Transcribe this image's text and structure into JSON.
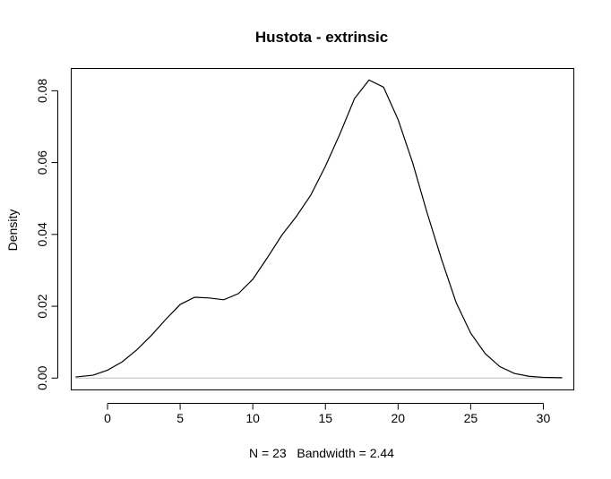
{
  "chart_data": {
    "type": "line",
    "title": "Hustota - extrinsic",
    "xlabel": "N = 23   Bandwidth = 2.44",
    "ylabel": "Density",
    "xlim": [
      -2.5,
      32.1
    ],
    "ylim": [
      -0.0033,
      0.0862
    ],
    "x_ticks": [
      0,
      5,
      10,
      15,
      20,
      25,
      30
    ],
    "x_tick_labels": [
      "0",
      "5",
      "10",
      "15",
      "20",
      "25",
      "30"
    ],
    "y_ticks": [
      0.0,
      0.02,
      0.04,
      0.06,
      0.08
    ],
    "y_tick_labels": [
      "0.00",
      "0.02",
      "0.04",
      "0.06",
      "0.08"
    ],
    "grid": false,
    "legend": "none",
    "zero_line": true,
    "series": [
      {
        "color": "#000000",
        "x": [
          -2.2,
          -1,
          0,
          1,
          2,
          3,
          4,
          5,
          6,
          7,
          8,
          9,
          10,
          11,
          12,
          13,
          14,
          15,
          16,
          17,
          18,
          19,
          20,
          21,
          22,
          23,
          24,
          25,
          26,
          27,
          28,
          29,
          30,
          31.3
        ],
        "y": [
          0.0003,
          0.0008,
          0.0022,
          0.0045,
          0.0078,
          0.0118,
          0.0163,
          0.0205,
          0.0225,
          0.0223,
          0.0218,
          0.0235,
          0.0275,
          0.0335,
          0.0398,
          0.045,
          0.051,
          0.059,
          0.068,
          0.0778,
          0.083,
          0.081,
          0.072,
          0.06,
          0.046,
          0.033,
          0.021,
          0.0125,
          0.0068,
          0.0032,
          0.0013,
          0.0005,
          0.0002,
          0.0001
        ]
      }
    ]
  }
}
